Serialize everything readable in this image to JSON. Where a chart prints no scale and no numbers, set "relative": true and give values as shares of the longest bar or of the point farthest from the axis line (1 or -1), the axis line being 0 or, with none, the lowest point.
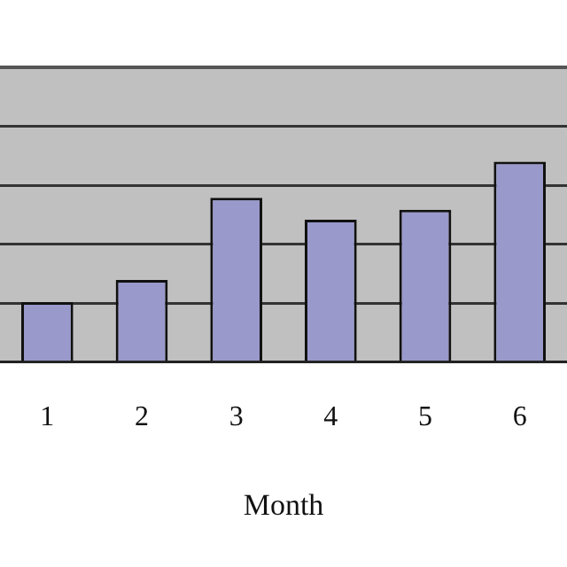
{
  "chart_data": {
    "type": "bar",
    "xlabel": "Month",
    "categories": [
      "1",
      "2",
      "3",
      "4",
      "5",
      "6"
    ],
    "values": [
      0.3,
      0.41,
      0.82,
      0.71,
      0.76,
      1
    ],
    "color": "#9999cc",
    "relative": true,
    "grid": "y",
    "legend": false
  }
}
